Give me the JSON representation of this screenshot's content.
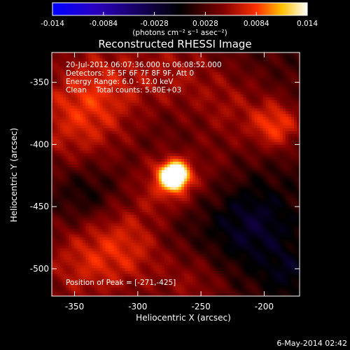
{
  "chart_data": {
    "type": "heatmap",
    "title": "Reconstructed RHESSI Image",
    "xlabel": "Heliocentric X (arcsec)",
    "ylabel": "Heliocentric Y (arcsec)",
    "xlim": [
      -368,
      -172
    ],
    "ylim": [
      -522,
      -326
    ],
    "x_ticks": [
      -350,
      -300,
      -250,
      -200
    ],
    "y_ticks": [
      -350,
      -400,
      -450,
      -500
    ],
    "colorbar": {
      "min": -0.014,
      "max": 0.014,
      "ticks": [
        "-0.014",
        "-0.0084",
        "-0.0028",
        "0.0028",
        "0.0084",
        "0.014"
      ],
      "label": "(photons cm⁻² s⁻¹ asec⁻²)",
      "colormap": [
        "#0000ff",
        "#2a00c0",
        "#000000",
        "#800000",
        "#ff3000",
        "#ffc000",
        "#ffffff"
      ]
    },
    "annotations": [
      "20-Jul-2012 06:07:36.000 to 06:08:52.000",
      "Detectors: 3F 5F 6F 7F 8F 9F, Att 0",
      "Energy Range: 6.0 - 12.0 keV",
      "Clean    Total counts: 5.80E+03"
    ],
    "peak_label": "Position of Peak = [-271,-425]",
    "peak": {
      "x": -271,
      "y": -425,
      "value": 0.014
    },
    "sources": [
      {
        "x": -271,
        "y": -425,
        "sigma": 7,
        "amp": 0.0165
      },
      {
        "x": -275,
        "y": -430,
        "sigma": 16,
        "amp": 0.0045
      },
      {
        "x": -310,
        "y": -480,
        "sigma": 28,
        "amp": 0.0045
      },
      {
        "x": -350,
        "y": -385,
        "sigma": 30,
        "amp": 0.0038
      },
      {
        "x": -330,
        "y": -350,
        "sigma": 28,
        "amp": 0.0035
      },
      {
        "x": -270,
        "y": -340,
        "sigma": 25,
        "amp": 0.003
      },
      {
        "x": -190,
        "y": -385,
        "sigma": 14,
        "amp": 0.0055
      },
      {
        "x": -225,
        "y": -370,
        "sigma": 22,
        "amp": 0.0028
      },
      {
        "x": -350,
        "y": -500,
        "sigma": 25,
        "amp": 0.003
      },
      {
        "x": -255,
        "y": -515,
        "sigma": 20,
        "amp": 0.0025
      },
      {
        "x": -240,
        "y": -420,
        "sigma": 20,
        "amp": 0.0015
      },
      {
        "x": -210,
        "y": -465,
        "sigma": 26,
        "amp": -0.004
      },
      {
        "x": -340,
        "y": -440,
        "sigma": 18,
        "amp": -0.003
      },
      {
        "x": -270,
        "y": -470,
        "sigma": 15,
        "amp": -0.001
      },
      {
        "x": -180,
        "y": -505,
        "sigma": 15,
        "amp": -0.0025
      }
    ]
  },
  "footer": {
    "date": "6-May-2014 02:42"
  }
}
